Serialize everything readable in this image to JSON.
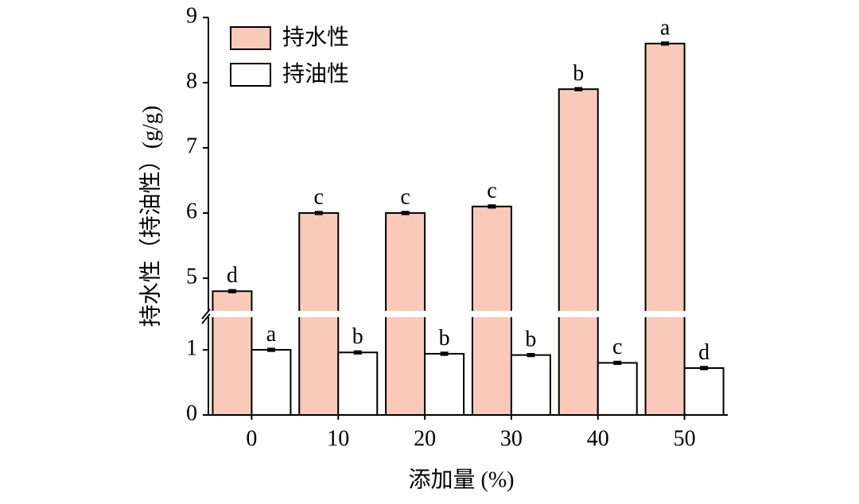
{
  "chart_data": {
    "type": "bar",
    "x_label": "添加量 (%)",
    "y_label": "持水性（持油性）(g/g)",
    "categories": [
      "0",
      "10",
      "20",
      "30",
      "40",
      "50"
    ],
    "y_segments": [
      {
        "ylim": [
          0,
          1.55
        ],
        "yticks": [
          0,
          1
        ]
      },
      {
        "ylim": [
          4.45,
          9
        ],
        "yticks": [
          5,
          6,
          7,
          8,
          9
        ]
      }
    ],
    "series": [
      {
        "name": "持水性",
        "color": "#f9c9b9",
        "values": [
          4.8,
          6.0,
          6.0,
          6.1,
          7.9,
          8.6
        ],
        "errors": [
          0.02,
          0.02,
          0.02,
          0.02,
          0.02,
          0.02
        ],
        "letters": [
          "d",
          "c",
          "c",
          "c",
          "b",
          "a"
        ]
      },
      {
        "name": "持油性",
        "color": "#ffffff",
        "values": [
          1.0,
          0.96,
          0.94,
          0.92,
          0.8,
          0.72
        ],
        "errors": [
          0.02,
          0.02,
          0.02,
          0.02,
          0.02,
          0.02
        ],
        "letters": [
          "a",
          "b",
          "b",
          "b",
          "c",
          "d"
        ]
      }
    ],
    "legend": "top-left"
  }
}
